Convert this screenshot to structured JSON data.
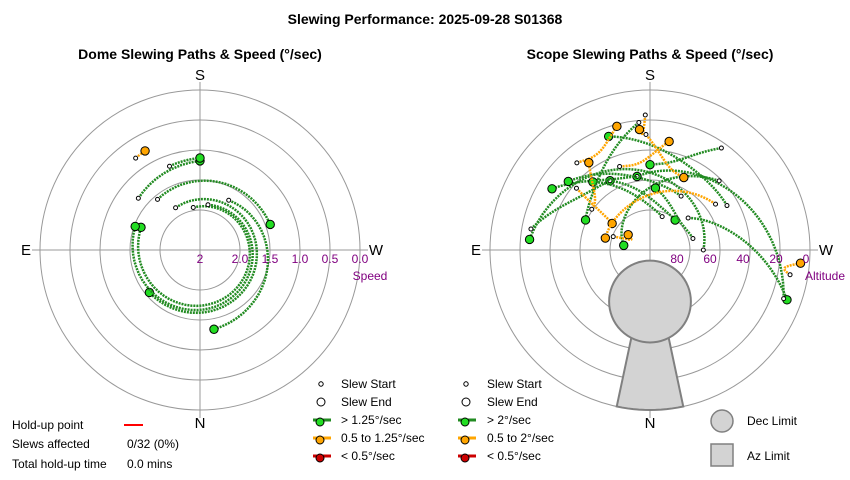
{
  "title": "Slewing Performance: 2025-09-28 S01368",
  "colors": {
    "fast": "#228B22",
    "mid": "#FFA500",
    "slow": "#CC0000",
    "fast_marker": "#22DD22",
    "ring": "#999999",
    "accent": "#800080",
    "limit_fill": "#D3D3D3",
    "limit_stroke": "#808080"
  },
  "chart_data": [
    {
      "type": "scatter",
      "title": "Dome Slewing Paths & Speed (°/sec)",
      "compass": {
        "top": "S",
        "bottom": "N",
        "left": "E",
        "right": "W"
      },
      "radial_axis": {
        "label": "Speed",
        "ticks": [
          "2",
          "2.0",
          "1.5",
          "1.0",
          "0.5",
          "0.0"
        ],
        "range": [
          2.5,
          0.0
        ]
      },
      "grid": true,
      "legend": [
        {
          "label": "Slew Start",
          "symbol": "small-circle"
        },
        {
          "label": "Slew End",
          "symbol": "circle"
        },
        {
          "label": "> 1.25°/sec",
          "color": "fast"
        },
        {
          "label": "0.5 to 1.25°/sec",
          "color": "mid"
        },
        {
          "label": "< 0.5°/sec",
          "color": "slow"
        }
      ],
      "slews": [
        {
          "az": 171,
          "speed": 2.1,
          "sweep": 300,
          "end_speed": 1.75,
          "cls": "fast"
        },
        {
          "az": 150,
          "speed": 2.0,
          "sweep": 260,
          "end_speed": 1.7,
          "cls": "fast"
        },
        {
          "az": 190,
          "speed": 2.05,
          "sweep": 280,
          "end_speed": 1.65,
          "cls": "fast"
        },
        {
          "az": 140,
          "speed": 1.7,
          "sweep": 110,
          "end_speed": 1.55,
          "cls": "fast"
        },
        {
          "az": 210,
          "speed": 1.85,
          "sweep": 140,
          "end_speed": 1.45,
          "cls": "fast"
        },
        {
          "az": 130,
          "speed": 1.45,
          "sweep": 50,
          "end_speed": 1.3,
          "cls": "fast"
        },
        {
          "az": 160,
          "speed": 1.3,
          "sweep": 20,
          "end_speed": 1.25,
          "cls": "fast"
        },
        {
          "az": 145,
          "speed": 0.9,
          "sweep": 6,
          "end_speed": 0.88,
          "cls": "mid"
        }
      ]
    },
    {
      "type": "scatter",
      "title": "Scope Slewing Paths & Speed (°/sec)",
      "compass": {
        "top": "S",
        "bottom": "N",
        "left": "E",
        "right": "W"
      },
      "radial_axis": {
        "label": "Altitude",
        "ticks": [
          "80",
          "60",
          "40",
          "20",
          "0"
        ],
        "range": [
          90,
          0
        ]
      },
      "grid": true,
      "legend": [
        {
          "label": "Slew Start",
          "symbol": "small-circle"
        },
        {
          "label": "Slew End",
          "symbol": "circle"
        },
        {
          "label": "> 2°/sec",
          "color": "fast"
        },
        {
          "label": "0.5 to 2°/sec",
          "color": "mid"
        },
        {
          "label": "< 0.5°/sec",
          "color": "slow"
        },
        {
          "label": "Dec Limit",
          "symbol": "circle-shape"
        },
        {
          "label": "Az Limit",
          "symbol": "square-shape"
        }
      ],
      "slews": [
        {
          "from": [
            60,
            270
          ],
          "to": [
            22,
            95
          ],
          "cls": "fast"
        },
        {
          "from": [
            22,
            100
          ],
          "to": [
            45,
            150
          ],
          "cls": "fast"
        },
        {
          "from": [
            45,
            150
          ],
          "to": [
            68,
            220
          ],
          "cls": "fast"
        },
        {
          "from": [
            62,
            230
          ],
          "to": [
            8,
            290
          ],
          "cls": "fast"
        },
        {
          "from": [
            10,
            290
          ],
          "to": [
            48,
            170
          ],
          "cls": "fast"
        },
        {
          "from": [
            48,
            170
          ],
          "to": [
            25,
            122
          ],
          "cls": "fast"
        },
        {
          "from": [
            20,
            215
          ],
          "to": [
            42,
            180
          ],
          "cls": "fast"
        },
        {
          "from": [
            40,
            240
          ],
          "to": [
            22,
            160
          ],
          "cls": "fast"
        },
        {
          "from": [
            55,
            210
          ],
          "to": [
            30,
            130
          ],
          "cls": "fast"
        },
        {
          "from": [
            70,
            200
          ],
          "to": [
            40,
            140
          ],
          "cls": "fast"
        },
        {
          "from": [
            35,
            225
          ],
          "to": [
            75,
            100
          ],
          "cls": "fast"
        },
        {
          "from": [
            18,
            175
          ],
          "to": [
            50,
            115
          ],
          "cls": "fast"
        },
        {
          "from": [
            65,
            255
          ],
          "to": [
            55,
            185
          ],
          "cls": "fast"
        },
        {
          "from": [
            36,
            130
          ],
          "to": [
            64,
            125
          ],
          "cls": "mid"
        },
        {
          "from": [
            25,
            178
          ],
          "to": [
            45,
            205
          ],
          "cls": "mid"
        },
        {
          "from": [
            40,
            160
          ],
          "to": [
            28,
            190
          ],
          "cls": "mid"
        },
        {
          "from": [
            14,
            178
          ],
          "to": [
            22,
            175
          ],
          "cls": "mid"
        },
        {
          "from": [
            45,
            235
          ],
          "to": [
            64,
            105
          ],
          "cls": "mid"
        },
        {
          "from": [
            68,
            110
          ],
          "to": [
            75,
            125
          ],
          "cls": "mid"
        },
        {
          "from": [
            26,
            140
          ],
          "to": [
            18,
            165
          ],
          "cls": "mid"
        },
        {
          "from": [
            10,
            280
          ],
          "to": [
            5,
            275
          ],
          "cls": "mid"
        },
        {
          "from": [
            50,
            125
          ],
          "to": [
            30,
            145
          ],
          "cls": "mid"
        }
      ],
      "dec_limit": {
        "alt": 61,
        "az": 0,
        "radius_deg": 23
      },
      "az_limit": {
        "az_range": [
          348,
          12
        ],
        "alt_range": [
          52,
          0
        ]
      }
    }
  ],
  "stats": {
    "holdup_label": "Hold-up point",
    "slews_label": "Slews affected",
    "slews_value": "0/32 (0%)",
    "total_label": "Total hold-up time",
    "total_value": "0.0 mins"
  }
}
